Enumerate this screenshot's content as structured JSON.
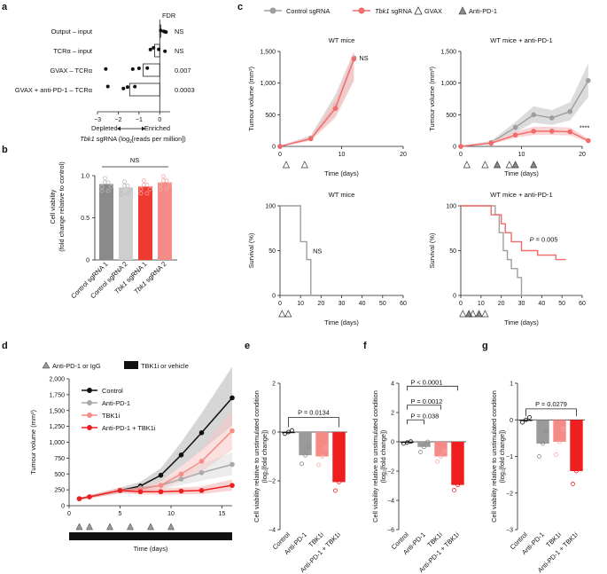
{
  "colors": {
    "control": "#9e9e9e",
    "tbk1": "#f26b6b",
    "tbk1_fill": "#f8c6c6",
    "black": "#111111",
    "bar_grey": "#8a8a8a",
    "bar_lightgrey": "#cfcfcf",
    "bar_red": "#ef3a2f",
    "bar_pink": "#f58b86"
  },
  "chart_data": [
    {
      "panel": "a",
      "type": "bar",
      "categories": [
        "Output – input",
        "TCRα – input",
        "GVAX – TCRα",
        "GVAX + anti-PD-1 – TCRα"
      ],
      "values": [
        0.05,
        -0.25,
        -0.8,
        -1.45
      ],
      "points": [
        [
          0.05,
          0.2,
          0.25,
          0.3
        ],
        [
          -0.45,
          -0.3,
          -0.05,
          0.25
        ],
        [
          -2.6,
          -1.3,
          -1.0,
          -0.6
        ],
        [
          -2.5,
          -1.75,
          -1.55,
          -1.2
        ]
      ],
      "fdr_header": "FDR",
      "fdr": [
        "NS",
        "NS",
        "0.007",
        "0.0003"
      ],
      "xlim": [
        -3,
        0.5
      ],
      "xticks": [
        "−3",
        "−2",
        "−1",
        "0"
      ],
      "xlabel_italic": "Tbk1",
      "xlabel_rest": " sgRNA (log",
      "xlabel_sub": "2",
      "xlabel_end": "[reads per million])",
      "depleted": "Depleted",
      "enriched": "Enriched"
    },
    {
      "panel": "b",
      "type": "bar",
      "categories": [
        "Control sgRNA 1",
        "Control sgRNA 2",
        "Tbk1 sgRNA 1",
        "Tbk1 sgRNA 2"
      ],
      "values": [
        0.9,
        0.86,
        0.87,
        0.92
      ],
      "ylim": [
        0,
        1.0
      ],
      "yticks": [
        "0",
        "0.5",
        "1.0"
      ],
      "ylabel": "Cell viability",
      "ylabel2": "(fold change relative to control)",
      "annotation": "NS"
    },
    {
      "panel": "c",
      "type": "line",
      "legend": [
        {
          "label": "Control sgRNA",
          "marker": "circle"
        },
        {
          "label_italic": "Tbk1",
          "label_rest": " sgRNA",
          "marker": "circle"
        },
        {
          "label": "GVAX",
          "marker": "open-triangle"
        },
        {
          "label": "Anti-PD-1",
          "marker": "grey-triangle"
        }
      ],
      "subplots": [
        {
          "title": "WT mice",
          "ylabel": "Tumour volume (mm³)",
          "xlabel": "Time (days)",
          "ylim": [
            0,
            1500
          ],
          "xlim": [
            0,
            20
          ],
          "yticks": [
            "0",
            "500",
            "1,000",
            "1,500"
          ],
          "xticks": [
            "0",
            "10",
            "20"
          ],
          "series": [
            {
              "x": [
                0,
                5,
                9,
                12
              ],
              "y": [
                0,
                130,
                650,
                1400
              ]
            },
            {
              "x": [
                0,
                5,
                9,
                12
              ],
              "y": [
                0,
                120,
                600,
                1380
              ]
            }
          ],
          "annotation": "NS"
        },
        {
          "title": "WT mice + anti-PD-1",
          "ylabel": "Tumour volume (mm³)",
          "xlabel": "Time (days)",
          "ylim": [
            0,
            1500
          ],
          "xlim": [
            0,
            20
          ],
          "yticks": [
            "0",
            "500",
            "1,000",
            "1,500"
          ],
          "xticks": [
            "0",
            "10",
            "20"
          ],
          "series": [
            {
              "x": [
                0,
                5,
                9,
                12,
                15,
                18,
                21
              ],
              "y": [
                0,
                60,
                300,
                500,
                450,
                550,
                1040
              ]
            },
            {
              "x": [
                0,
                5,
                9,
                12,
                15,
                18,
                21
              ],
              "y": [
                0,
                50,
                180,
                240,
                240,
                230,
                90
              ]
            }
          ],
          "annotation": "****"
        },
        {
          "title": "WT mice",
          "ylabel": "Survival (%)",
          "xlabel": "Time (days)",
          "ylim": [
            0,
            100
          ],
          "xlim": [
            0,
            60
          ],
          "yticks": [
            "0",
            "50",
            "100"
          ],
          "xticks": [
            "0",
            "10",
            "20",
            "30",
            "40",
            "50",
            "60"
          ],
          "series": [
            {
              "x": [
                0,
                10,
                10,
                13,
                13,
                15,
                15
              ],
              "y": [
                100,
                100,
                60,
                60,
                40,
                40,
                0
              ]
            }
          ],
          "annotation": "NS"
        },
        {
          "title": "WT mice + anti-PD-1",
          "ylabel": "Survival (%)",
          "xlabel": "Time (days)",
          "ylim": [
            0,
            100
          ],
          "xlim": [
            0,
            60
          ],
          "yticks": [
            "0",
            "50",
            "100"
          ],
          "xticks": [
            "0",
            "10",
            "20",
            "30",
            "40",
            "50",
            "60"
          ],
          "series": [
            {
              "x": [
                0,
                17,
                17,
                19,
                19,
                21,
                21,
                23,
                23,
                25,
                25,
                28,
                28,
                30,
                30,
                32
              ],
              "y": [
                100,
                100,
                90,
                90,
                70,
                70,
                50,
                50,
                40,
                40,
                30,
                30,
                20,
                20,
                0,
                0
              ]
            },
            {
              "x": [
                0,
                15,
                15,
                20,
                20,
                22,
                22,
                25,
                25,
                30,
                30,
                38,
                38,
                47,
                47,
                52
              ],
              "y": [
                100,
                100,
                90,
                90,
                80,
                80,
                70,
                70,
                60,
                60,
                50,
                50,
                45,
                45,
                40,
                40
              ]
            }
          ],
          "annotation_p": "P",
          "annotation": " = 0.005"
        }
      ]
    },
    {
      "panel": "d",
      "type": "line",
      "legend_top": [
        {
          "label": "Anti-PD-1 or IgG"
        },
        {
          "label": "TBK1i or vehicle"
        }
      ],
      "legend": [
        "Control",
        "Anti-PD-1",
        "TBK1i",
        "Anti-PD-1 + TBK1i"
      ],
      "ylabel": "Tumour volume (mm³)",
      "xlabel": "Time (days)",
      "ylim": [
        0,
        2000
      ],
      "xlim": [
        0,
        16
      ],
      "yticks": [
        "0",
        "250",
        "500",
        "750",
        "1,000",
        "1,250",
        "1,500",
        "1,750",
        "2,000"
      ],
      "xticks": [
        "0",
        "5",
        "10",
        "15"
      ],
      "x": [
        1,
        2,
        5,
        7,
        9,
        11,
        13,
        16
      ],
      "series": [
        {
          "name": "Control",
          "y": [
            110,
            140,
            240,
            310,
            480,
            800,
            1150,
            1700
          ]
        },
        {
          "name": "Anti-PD-1",
          "y": [
            110,
            140,
            240,
            280,
            320,
            420,
            520,
            650
          ]
        },
        {
          "name": "TBK1i",
          "y": [
            110,
            140,
            240,
            260,
            320,
            500,
            700,
            1180
          ]
        },
        {
          "name": "Anti-PD-1 + TBK1i",
          "y": [
            110,
            140,
            240,
            220,
            220,
            230,
            240,
            320
          ]
        }
      ]
    },
    {
      "panel": "e",
      "type": "bar",
      "categories": [
        "Control",
        "Anti-PD-1",
        "TBK1i",
        "Anti-PD-1 + TBK1i"
      ],
      "values": [
        0.0,
        -0.95,
        -1.0,
        -2.05
      ],
      "ylim": [
        -4,
        2
      ],
      "yticks": [
        "2",
        "0",
        "−2",
        "−4"
      ],
      "ylabel": "Cell viability relative to unstimulated condition",
      "ylabel2": "(log₂[fold change])",
      "annotation": "P = 0.0134"
    },
    {
      "panel": "f",
      "type": "bar",
      "categories": [
        "Control",
        "Anti-PD-1",
        "TBK1i",
        "Anti-PD-1 + TBK1i"
      ],
      "values": [
        -0.05,
        -0.35,
        -1.0,
        -2.95
      ],
      "ylim": [
        -6,
        4
      ],
      "yticks": [
        "4",
        "2",
        "0",
        "−2",
        "−4",
        "−6"
      ],
      "ylabel": "Cell viability relative to unstimulated condition",
      "ylabel2": "(log₂[fold change])",
      "annotations": [
        "P < 0.0001",
        "P = 0.0012",
        "P = 0.038"
      ]
    },
    {
      "panel": "g",
      "type": "bar",
      "categories": [
        "Control",
        "Anti-PD-1",
        "TBK1i",
        "Anti-PD-1 + TBK1i"
      ],
      "values": [
        0.0,
        -0.65,
        -0.6,
        -1.4
      ],
      "ylim": [
        -3,
        1
      ],
      "yticks": [
        "1",
        "0",
        "−1",
        "−2",
        "−3"
      ],
      "ylabel": "Cell viability relative to unstimulated condition",
      "ylabel2": "(log₂[fold change])",
      "annotation": "P = 0.0279"
    }
  ]
}
